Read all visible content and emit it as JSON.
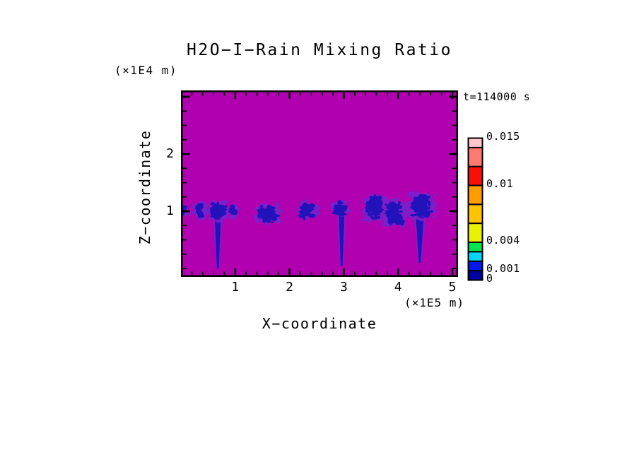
{
  "title": "H2O−I−Rain Mixing Ratio",
  "time_label": "t=114000 s",
  "axes": {
    "x": {
      "label": "X−coordinate",
      "units": "(×1E5 m)",
      "tick_labels": [
        {
          "v": 1,
          "label": "1"
        },
        {
          "v": 2,
          "label": "2"
        },
        {
          "v": 3,
          "label": "3"
        },
        {
          "v": 4,
          "label": "4"
        },
        {
          "v": 5,
          "label": "5"
        }
      ],
      "minor_step": 0.2
    },
    "z": {
      "label": "Z−coordinate",
      "units": "(×1E4 m)",
      "tick_labels": [
        {
          "v": 2,
          "label": "2"
        },
        {
          "v": 1,
          "label": "1"
        }
      ],
      "major_ticks": [
        1,
        2,
        3
      ],
      "minor_step": 0.25
    }
  },
  "colors": {
    "field_background": "#B000B0",
    "cell_fringe": "#7B1FC9",
    "cell_core": "#2212BA",
    "frame": "#000000",
    "text": "#000000"
  },
  "chart_data": {
    "type": "heatmap",
    "title": "H2O−I−Rain Mixing Ratio",
    "xlabel": "X−coordinate",
    "ylabel": "Z−coordinate",
    "x_units": "(×1E5 m)",
    "y_units": "(×1E4 m)",
    "time": "t=114000 s",
    "xlim": [
      0,
      5.1
    ],
    "ylim": [
      0,
      3.1
    ],
    "grid": false,
    "legend_position": "right",
    "x_major_ticks": [
      1,
      2,
      3,
      4,
      5
    ],
    "y_major_ticks": [
      1,
      2,
      3
    ],
    "contour_levels": [
      0,
      0.001,
      0.002,
      0.003,
      0.004,
      0.006,
      0.008,
      0.01,
      0.012,
      0.014,
      0.015
    ],
    "level_colors_low_to_high": [
      "#0000A0",
      "#0019F0",
      "#00D4FF",
      "#00E550",
      "#E9F000",
      "#FFC300",
      "#FF9D00",
      "#FA1008",
      "#FF7A70",
      "#FFC6CE"
    ],
    "colorbar_labeled_levels": [
      {
        "value": 0.015,
        "label": "0.015"
      },
      {
        "value": 0.01,
        "label": "0.01"
      },
      {
        "value": 0.004,
        "label": "0.004"
      },
      {
        "value": 0.001,
        "label": "0.001"
      },
      {
        "value": 0,
        "label": "0"
      }
    ],
    "field_note": "background field value ~0 (magenta); rain cells at z≈1 (×1E4 m), values mostly below 0.002",
    "rain_cells": [
      {
        "x": 0.02,
        "z": 1.01,
        "w": 0.2,
        "h": 0.21,
        "intensity": 0.4,
        "shaft_x": null,
        "shaft_bottom_z": null
      },
      {
        "x": 0.35,
        "z": 1.02,
        "w": 0.2,
        "h": 0.32,
        "intensity": 0.5,
        "shaft_x": null,
        "shaft_bottom_z": null
      },
      {
        "x": 0.69,
        "z": 1.02,
        "w": 0.36,
        "h": 0.32,
        "intensity": 0.95,
        "shaft_x": 0.68,
        "shaft_bottom_z": 0.0
      },
      {
        "x": 0.96,
        "z": 1.0,
        "w": 0.13,
        "h": 0.24,
        "intensity": 0.3,
        "shaft_x": null,
        "shaft_bottom_z": null
      },
      {
        "x": 1.6,
        "z": 0.95,
        "w": 0.43,
        "h": 0.35,
        "intensity": 0.8,
        "shaft_x": null,
        "shaft_bottom_z": null
      },
      {
        "x": 2.32,
        "z": 1.02,
        "w": 0.35,
        "h": 0.32,
        "intensity": 0.55,
        "shaft_x": null,
        "shaft_bottom_z": null
      },
      {
        "x": 2.94,
        "z": 1.04,
        "w": 0.29,
        "h": 0.27,
        "intensity": 0.85,
        "shaft_x": 2.96,
        "shaft_bottom_z": 0.04
      },
      {
        "x": 3.57,
        "z": 1.06,
        "w": 0.39,
        "h": 0.47,
        "intensity": 0.9,
        "shaft_x": null,
        "shaft_bottom_z": null
      },
      {
        "x": 3.93,
        "z": 0.97,
        "w": 0.42,
        "h": 0.49,
        "intensity": 0.85,
        "shaft_x": null,
        "shaft_bottom_z": null
      },
      {
        "x": 4.43,
        "z": 1.08,
        "w": 0.49,
        "h": 0.44,
        "intensity": 0.85,
        "shaft_x": 4.4,
        "shaft_bottom_z": 0.1
      }
    ]
  }
}
